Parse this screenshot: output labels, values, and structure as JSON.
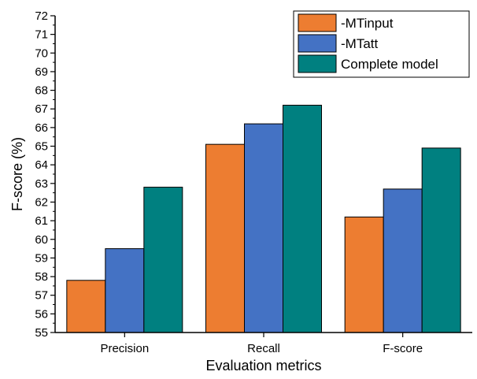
{
  "chart_data": {
    "type": "bar",
    "title": "",
    "xlabel": "Evaluation metrics",
    "ylabel": "F-score (%)",
    "categories": [
      "Precision",
      "Recall",
      "F-score"
    ],
    "series": [
      {
        "name": "-MTinput",
        "color": "#ed7d31",
        "values": [
          57.8,
          65.1,
          61.2
        ]
      },
      {
        "name": "-MTatt",
        "color": "#4472c4",
        "values": [
          59.5,
          66.2,
          62.7
        ]
      },
      {
        "name": "Complete model",
        "color": "#008080",
        "values": [
          62.8,
          67.2,
          64.9
        ]
      }
    ],
    "ylim": [
      55,
      72
    ],
    "y_ticks": [
      "55",
      "56",
      "57",
      "58",
      "59",
      "60",
      "61",
      "62",
      "63",
      "64",
      "65",
      "66",
      "67",
      "68",
      "69",
      "70",
      "71",
      "72"
    ],
    "grid": false,
    "legend_position": "top-right"
  }
}
